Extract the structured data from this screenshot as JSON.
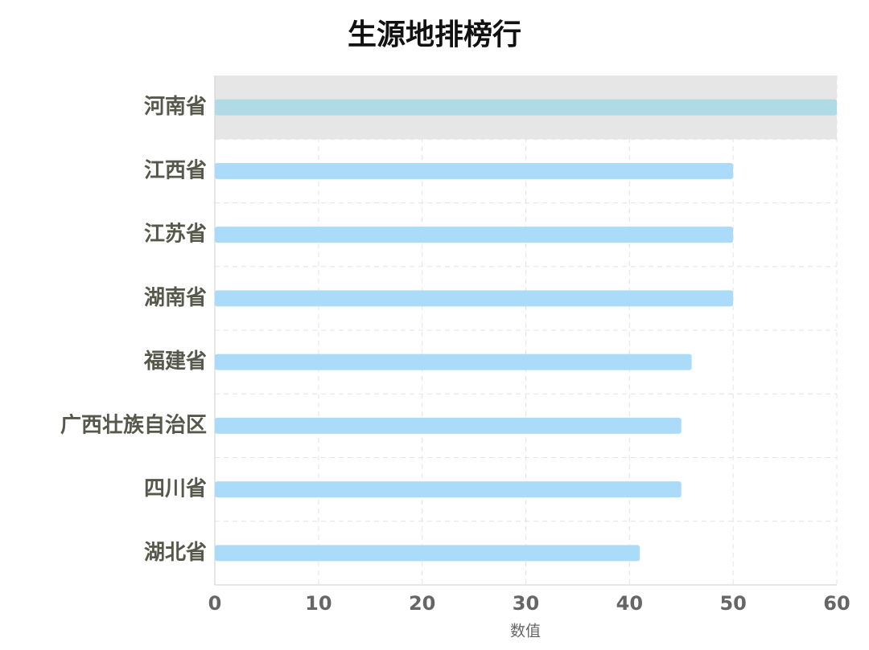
{
  "chart_data": {
    "type": "barh",
    "title": "生源地排榜行",
    "x_label": "数值",
    "categories": [
      "河南省",
      "江西省",
      "江苏省",
      "湖南省",
      "福建省",
      "广西壮族自治区",
      "四川省",
      "湖北省"
    ],
    "values": [
      60,
      50,
      50,
      50,
      46,
      45,
      45,
      41
    ],
    "colors": [
      "#b0dae6",
      "#aadcfa",
      "#aadcfa",
      "#aadcfa",
      "#aadcfa",
      "#aadcfa",
      "#aadcfa",
      "#aadcfa"
    ],
    "highlight": 0,
    "xlim": [
      0,
      60
    ],
    "xticks": [
      0,
      10,
      20,
      30,
      40,
      50,
      60
    ],
    "grid": true
  }
}
